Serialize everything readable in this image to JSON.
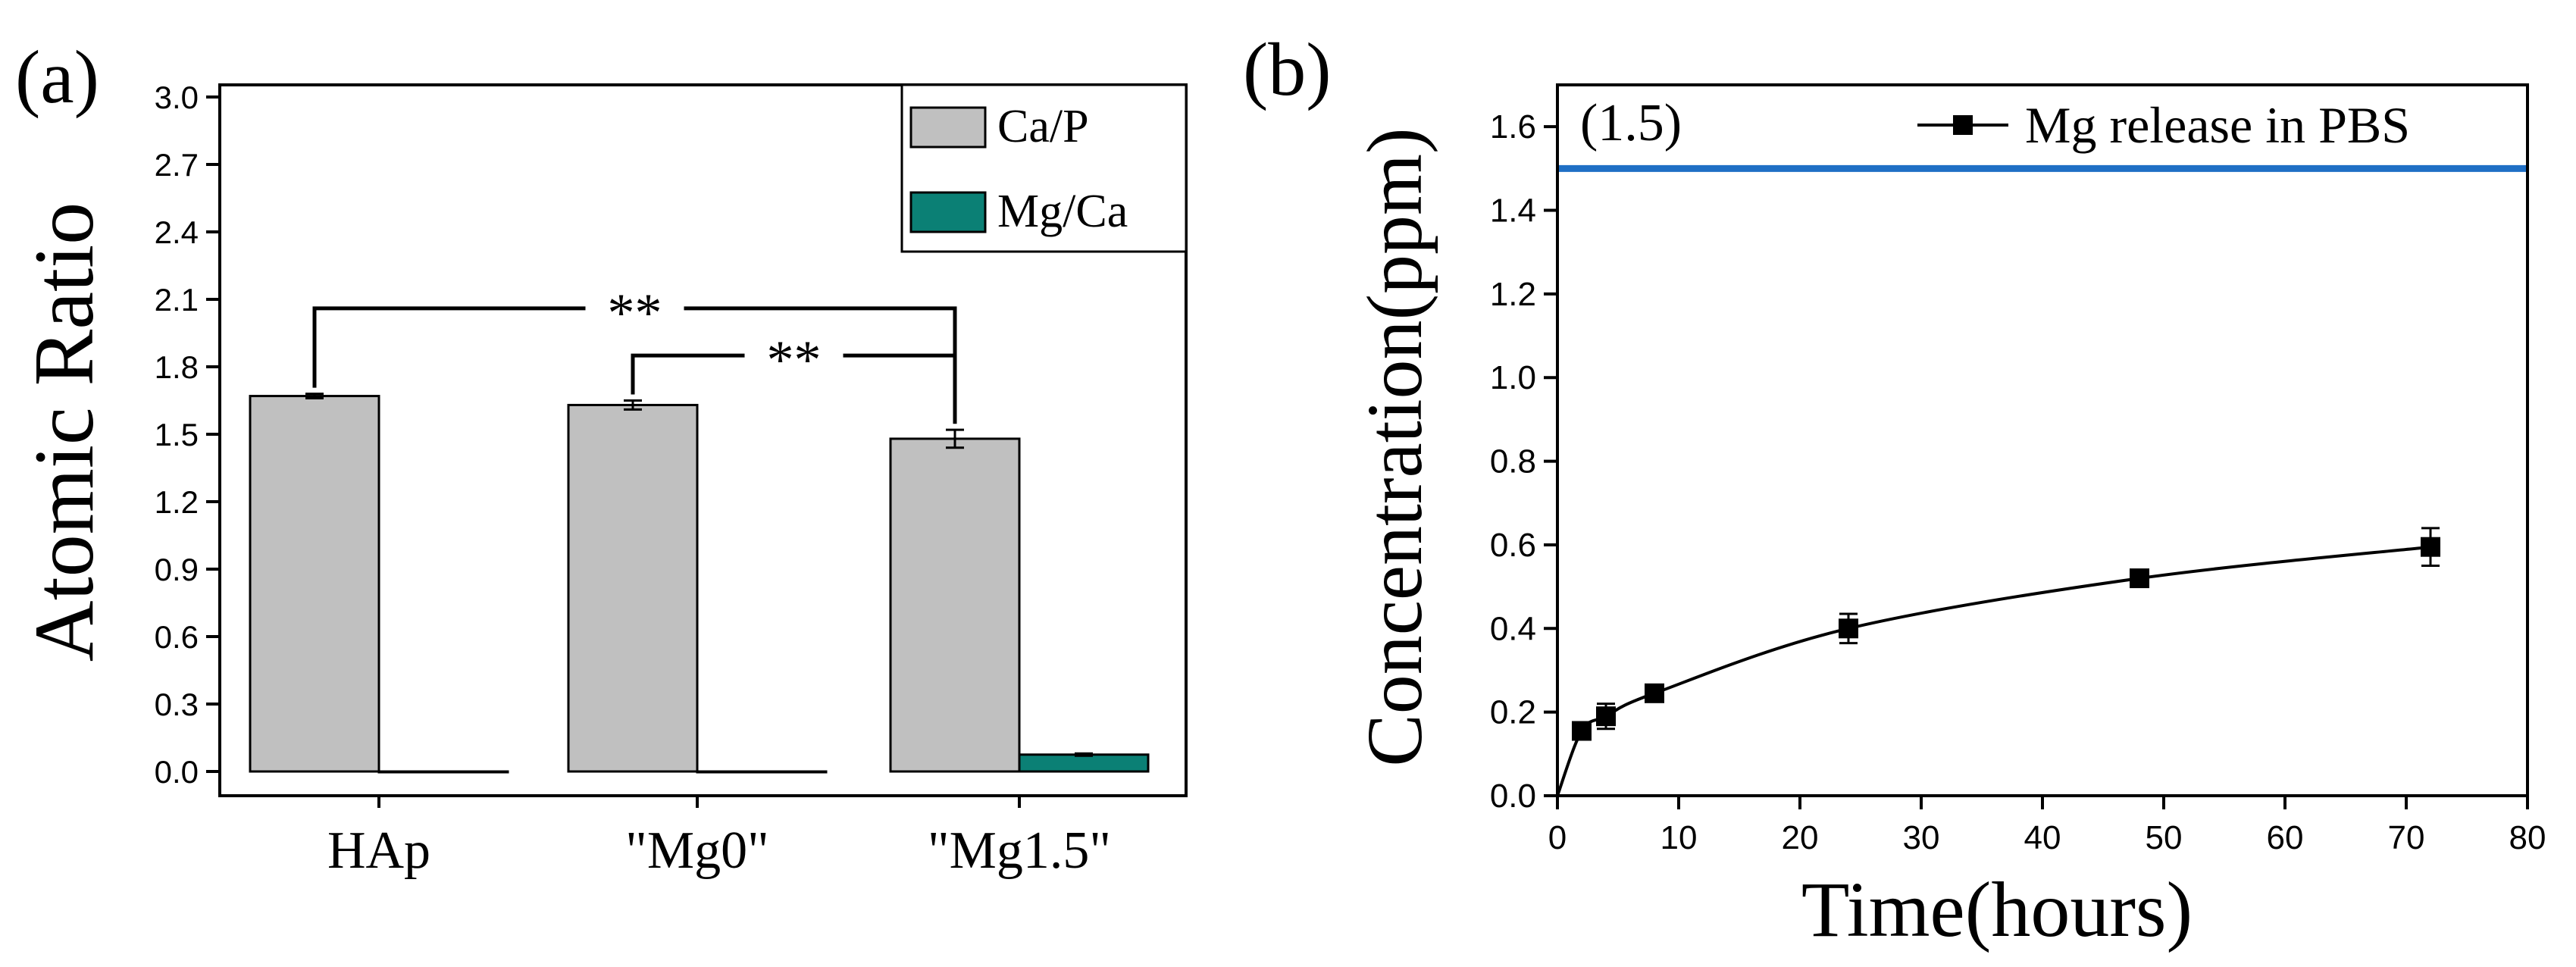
{
  "chart_data": [
    {
      "panel_label": "(a)",
      "type": "bar",
      "xlabel": "",
      "ylabel": "Atomic Ratio",
      "ylim": [
        0.0,
        3.0
      ],
      "yticks": [
        "0.0",
        "0.3",
        "0.6",
        "0.9",
        "1.2",
        "1.5",
        "1.8",
        "2.1",
        "2.4",
        "2.7",
        "3.0"
      ],
      "categories": [
        "HAp",
        "\"Mg0\"",
        "\"Mg1.5\""
      ],
      "series": [
        {
          "name": "Ca/P",
          "color": "#c0c0c0",
          "values": [
            1.67,
            1.63,
            1.48
          ],
          "errors": [
            0.01,
            0.02,
            0.04
          ]
        },
        {
          "name": "Mg/Ca",
          "color": "#0b8075",
          "values": [
            0.0,
            0.0,
            0.075
          ],
          "errors": [
            0.0,
            0.0,
            0.005
          ]
        }
      ],
      "significance": [
        {
          "label": "**",
          "from": 0,
          "to": 2,
          "level": 2.06
        },
        {
          "label": "**",
          "from": 1,
          "to": 2,
          "level": 1.85
        }
      ],
      "legend": "top-right"
    },
    {
      "panel_label": "(b)",
      "type": "line",
      "xlabel": "Time(hours)",
      "ylabel": "Concentration(ppm)",
      "xlim": [
        0,
        80
      ],
      "ylim": [
        0.0,
        1.7
      ],
      "xticks": [
        "0",
        "10",
        "20",
        "30",
        "40",
        "50",
        "60",
        "70",
        "80"
      ],
      "yticks": [
        "0.0",
        "0.2",
        "0.4",
        "0.6",
        "0.8",
        "1.0",
        "1.2",
        "1.4",
        "1.6"
      ],
      "series": [
        {
          "name": "Mg release in PBS",
          "color": "#000000",
          "x": [
            0,
            2,
            4,
            8,
            24,
            48,
            72
          ],
          "y": [
            0.0,
            0.155,
            0.19,
            0.245,
            0.4,
            0.52,
            0.595
          ],
          "errors": [
            0.0,
            0.015,
            0.03,
            0.015,
            0.035,
            0.02,
            0.045
          ]
        }
      ],
      "reference_line": {
        "label": "(1.5)",
        "y": 1.5,
        "color": "#1f6fc5"
      },
      "legend": "top-right"
    }
  ]
}
